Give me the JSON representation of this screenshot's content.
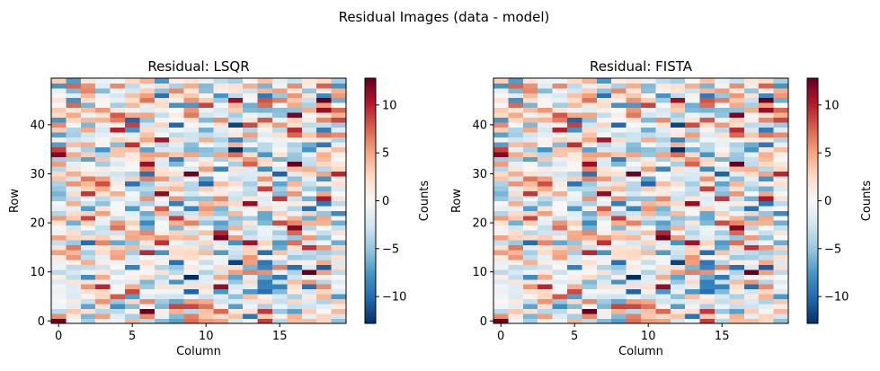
{
  "figure": {
    "suptitle": "Residual Images (data - model)"
  },
  "colormap": {
    "name": "RdBu_r",
    "stops": [
      "#053061",
      "#2166ac",
      "#4393c3",
      "#92c5de",
      "#d1e5f0",
      "#f7f7f7",
      "#fddbc7",
      "#f4a582",
      "#d6604d",
      "#b2182b",
      "#67001f"
    ]
  },
  "chart_data": [
    {
      "type": "heatmap",
      "title": "Residual: LSQR",
      "xlabel": "Column",
      "ylabel": "Row",
      "colorbar_label": "Counts",
      "n_cols": 20,
      "n_rows": 50,
      "xlim": [
        -0.5,
        19.5
      ],
      "ylim": [
        -0.5,
        49.5
      ],
      "x_ticks": [
        0,
        5,
        10,
        15
      ],
      "y_ticks": [
        0,
        10,
        20,
        30,
        40
      ],
      "vmin": -12.8,
      "vmax": 12.8,
      "colorbar_ticks": [
        -10,
        -5,
        0,
        5,
        10
      ],
      "colorbar_tick_labels": [
        "−10",
        "−5",
        "0",
        "5",
        "10"
      ],
      "seed": 7
    },
    {
      "type": "heatmap",
      "title": "Residual: FISTA",
      "xlabel": "Column",
      "ylabel": "Row",
      "colorbar_label": "Counts",
      "n_cols": 20,
      "n_rows": 50,
      "xlim": [
        -0.5,
        19.5
      ],
      "ylim": [
        -0.5,
        49.5
      ],
      "x_ticks": [
        0,
        5,
        10,
        15
      ],
      "y_ticks": [
        0,
        10,
        20,
        30,
        40
      ],
      "vmin": -12.8,
      "vmax": 12.8,
      "colorbar_ticks": [
        -10,
        -5,
        0,
        5,
        10
      ],
      "colorbar_tick_labels": [
        "−10",
        "−5",
        "0",
        "5",
        "10"
      ],
      "seed": 7
    }
  ]
}
